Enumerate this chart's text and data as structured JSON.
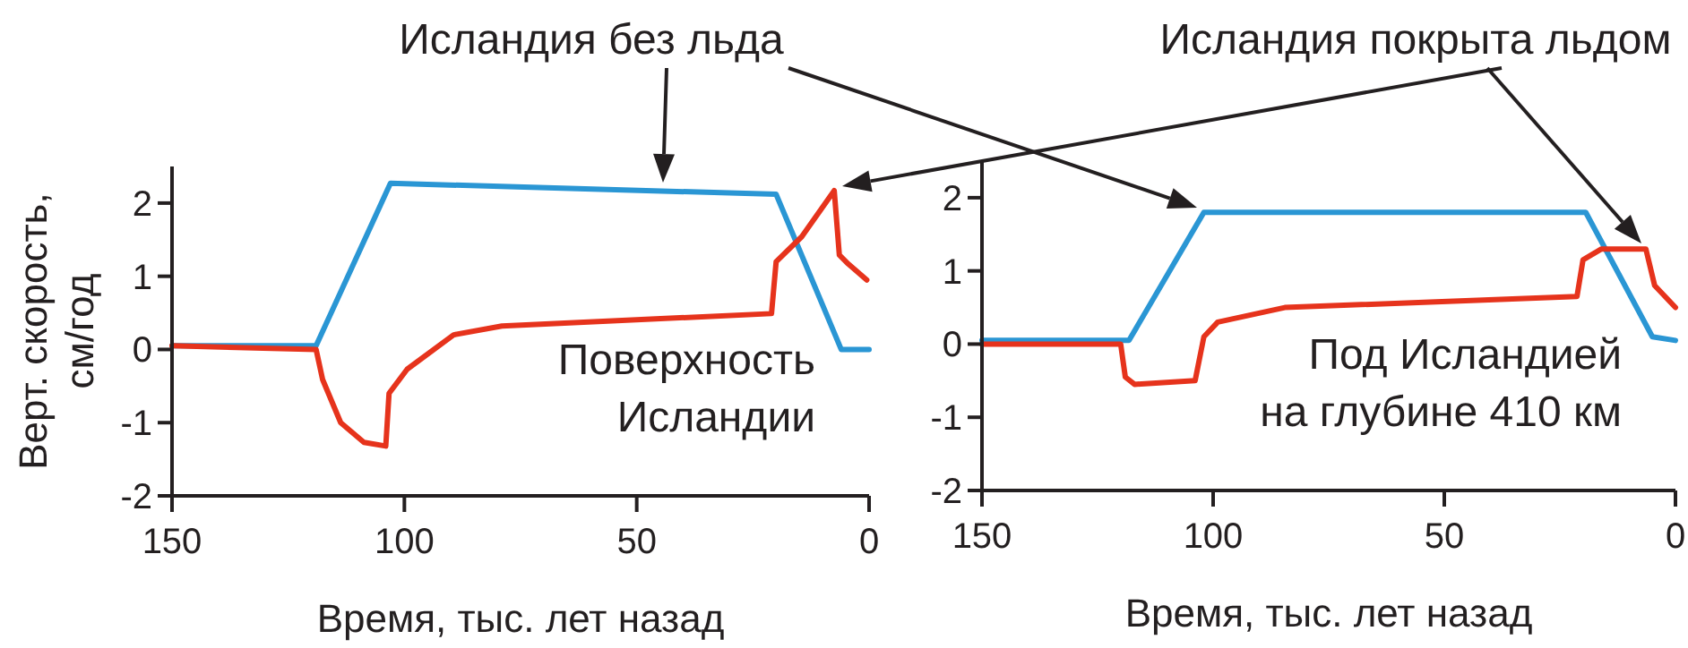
{
  "chart_data": [
    {
      "type": "line",
      "title": "Поверхность\nИсландии",
      "xlabel": "Время, тыс. лет назад",
      "ylabel": "Верт. скорость,\nсм/год",
      "annotations": [
        "Исландия без льда"
      ],
      "xlim": [
        150,
        0
      ],
      "ylim": [
        -2,
        2.5
      ],
      "xticks": [
        150,
        100,
        50,
        0
      ],
      "yticks": [
        -2,
        -1,
        0,
        1,
        2
      ],
      "series": [
        {
          "color": "#2a96d4",
          "x": [
            150,
            119,
            103,
            20,
            6,
            0
          ],
          "values": [
            0.05,
            0.05,
            2.27,
            2.12,
            0.0,
            0.0
          ]
        },
        {
          "color": "#e6331c",
          "x": [
            150,
            119,
            117.6,
            113.7,
            108.7,
            104,
            103.3,
            99.4,
            89.4,
            79,
            21,
            20,
            14.5,
            7.5,
            6.4,
            4.5,
            0.5
          ],
          "values": [
            0.05,
            0.0,
            -0.41,
            -1.0,
            -1.27,
            -1.32,
            -0.6,
            -0.27,
            0.2,
            0.32,
            0.49,
            1.2,
            1.54,
            2.17,
            1.29,
            1.17,
            0.95
          ]
        }
      ]
    },
    {
      "type": "line",
      "title": "Под Исландией\nна глубине 410 км",
      "xlabel": "Время, тыс. лет назад",
      "annotations": [
        "Исландия покрыта льдом"
      ],
      "xlim": [
        150,
        0
      ],
      "ylim": [
        -2,
        2.5
      ],
      "xticks": [
        150,
        100,
        50,
        0
      ],
      "yticks": [
        -2,
        -1,
        0,
        1,
        2
      ],
      "series": [
        {
          "color": "#2a96d4",
          "x": [
            150,
            118.2,
            102,
            19.4,
            5,
            0
          ],
          "values": [
            0.05,
            0.05,
            1.8,
            1.8,
            0.1,
            0.05
          ]
        },
        {
          "color": "#e6331c",
          "x": [
            150,
            120,
            119,
            117,
            103.9,
            102,
            99,
            84.5,
            21.3,
            20,
            16,
            6.4,
            4.5,
            0
          ],
          "values": [
            0.0,
            0.0,
            -0.45,
            -0.55,
            -0.5,
            0.1,
            0.3,
            0.5,
            0.65,
            1.15,
            1.3,
            1.3,
            0.8,
            0.5
          ]
        }
      ]
    }
  ]
}
